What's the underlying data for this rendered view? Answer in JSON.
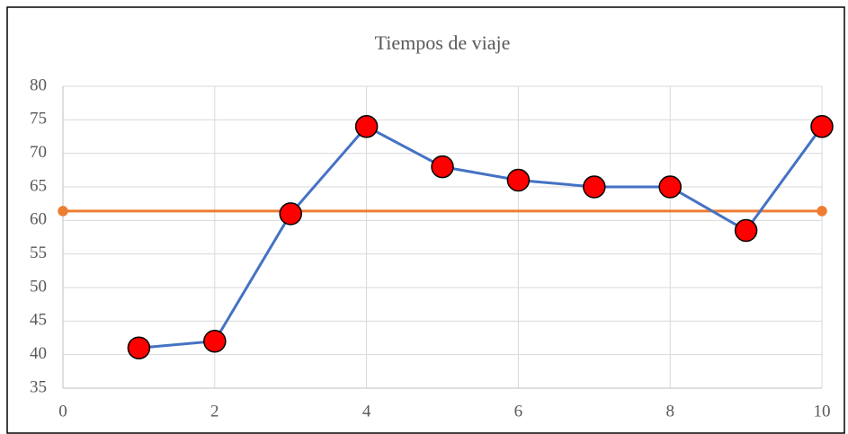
{
  "chart_data": {
    "type": "line",
    "title": "Tiempos de viaje",
    "series": [
      {
        "color": "#4472c4",
        "marker_color": "#ff0000",
        "marker_size": 12,
        "x": [
          1,
          2,
          3,
          4,
          5,
          6,
          7,
          8,
          9,
          10
        ],
        "values": [
          41,
          42,
          61,
          74,
          68,
          66,
          65,
          65,
          58.5,
          74
        ]
      },
      {
        "color": "#ed7d31",
        "marker_color": "#ed7d31",
        "marker_size": 5,
        "x": [
          0,
          10
        ],
        "values": [
          61.4,
          61.4
        ]
      }
    ],
    "xlim": [
      0,
      10
    ],
    "xticks": [
      0,
      2,
      4,
      6,
      8,
      10
    ],
    "ylim": [
      35,
      80
    ],
    "yticks": [
      35,
      40,
      45,
      50,
      55,
      60,
      65,
      70,
      75,
      80
    ],
    "grid": true
  }
}
